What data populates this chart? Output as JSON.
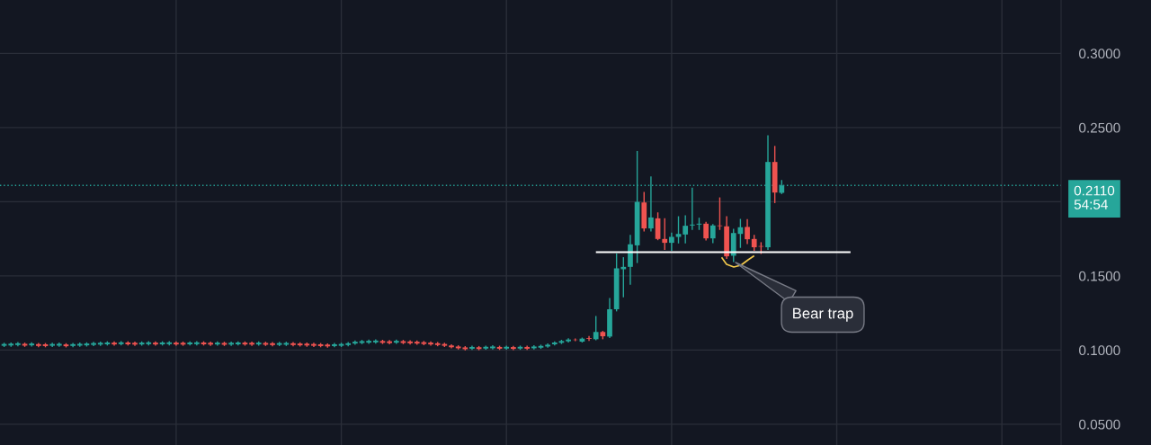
{
  "chart_data": {
    "type": "candlestick",
    "categories": [
      null,
      null,
      null,
      null,
      null,
      null,
      null,
      null,
      null,
      null,
      null,
      null,
      null,
      null,
      null,
      null,
      null,
      null,
      null,
      null,
      null,
      null,
      null,
      null,
      null,
      null,
      null,
      null,
      null,
      null,
      null,
      null,
      null,
      null,
      null,
      null,
      null,
      null,
      null,
      null,
      null,
      null,
      null,
      null,
      null,
      null,
      null,
      null,
      null,
      null,
      null,
      null,
      null,
      null,
      null,
      null,
      null,
      null,
      null,
      null,
      null,
      null,
      null,
      null,
      null,
      null,
      null,
      null,
      null,
      null,
      null,
      null,
      null,
      null,
      null,
      null,
      null,
      null,
      null,
      null,
      null,
      null,
      null,
      null,
      null,
      null,
      null,
      null,
      null,
      null,
      null,
      null,
      null,
      null,
      null,
      null,
      null,
      null,
      null,
      null,
      null,
      null,
      null,
      null,
      null,
      null,
      null,
      null,
      null,
      null,
      null,
      null,
      null,
      null,
      null,
      null,
      null,
      null,
      null,
      null,
      null,
      null,
      null,
      null,
      null,
      null,
      null,
      null,
      null,
      null,
      null,
      null,
      null,
      null,
      null,
      null,
      null,
      null,
      null,
      null,
      null,
      null,
      null,
      null,
      null,
      null,
      null,
      null,
      null,
      null,
      null,
      null,
      null,
      null
    ],
    "ohlc": [
      [
        0.1029,
        0.1045,
        0.1025,
        0.1041
      ],
      [
        0.1031,
        0.1047,
        0.1027,
        0.1043
      ],
      [
        0.1034,
        0.105,
        0.103,
        0.1046
      ],
      [
        0.1042,
        0.1046,
        0.1026,
        0.103
      ],
      [
        0.1032,
        0.1048,
        0.1028,
        0.1044
      ],
      [
        0.104,
        0.1044,
        0.1024,
        0.1028
      ],
      [
        0.1039,
        0.1043,
        0.1023,
        0.1027
      ],
      [
        0.1029,
        0.1045,
        0.1025,
        0.1041
      ],
      [
        0.103,
        0.1046,
        0.1026,
        0.1042
      ],
      [
        0.1038,
        0.1042,
        0.1022,
        0.1026
      ],
      [
        0.1028,
        0.1044,
        0.1024,
        0.104
      ],
      [
        0.103,
        0.1046,
        0.1026,
        0.1042
      ],
      [
        0.1032,
        0.1048,
        0.1028,
        0.1044
      ],
      [
        0.1035,
        0.1051,
        0.1031,
        0.1047
      ],
      [
        0.1037,
        0.1053,
        0.1033,
        0.1049
      ],
      [
        0.1039,
        0.1055,
        0.1035,
        0.1051
      ],
      [
        0.105,
        0.1054,
        0.1034,
        0.1038
      ],
      [
        0.104,
        0.1056,
        0.1036,
        0.1052
      ],
      [
        0.1051,
        0.1055,
        0.1035,
        0.1039
      ],
      [
        0.1049,
        0.1053,
        0.1033,
        0.1037
      ],
      [
        0.1038,
        0.1054,
        0.1034,
        0.105
      ],
      [
        0.104,
        0.1056,
        0.1036,
        0.1052
      ],
      [
        0.105,
        0.1054,
        0.1034,
        0.1038
      ],
      [
        0.1039,
        0.1055,
        0.1035,
        0.1051
      ],
      [
        0.104,
        0.1056,
        0.1036,
        0.1052
      ],
      [
        0.105,
        0.1054,
        0.1034,
        0.1038
      ],
      [
        0.1049,
        0.1053,
        0.1033,
        0.1037
      ],
      [
        0.1039,
        0.1055,
        0.1035,
        0.1051
      ],
      [
        0.104,
        0.1056,
        0.1036,
        0.1052
      ],
      [
        0.1051,
        0.1055,
        0.1035,
        0.1039
      ],
      [
        0.1049,
        0.1053,
        0.1033,
        0.1037
      ],
      [
        0.1038,
        0.1054,
        0.1034,
        0.105
      ],
      [
        0.1048,
        0.1052,
        0.1032,
        0.1036
      ],
      [
        0.1037,
        0.1053,
        0.1033,
        0.1049
      ],
      [
        0.1039,
        0.1055,
        0.1035,
        0.1051
      ],
      [
        0.105,
        0.1054,
        0.1034,
        0.1038
      ],
      [
        0.1049,
        0.1053,
        0.1033,
        0.1037
      ],
      [
        0.1038,
        0.1054,
        0.1034,
        0.105
      ],
      [
        0.1048,
        0.1052,
        0.1032,
        0.1036
      ],
      [
        0.1046,
        0.105,
        0.103,
        0.1034
      ],
      [
        0.1035,
        0.1051,
        0.1031,
        0.1047
      ],
      [
        0.1036,
        0.1052,
        0.1032,
        0.1048
      ],
      [
        0.1046,
        0.105,
        0.103,
        0.1034
      ],
      [
        0.1044,
        0.1048,
        0.1028,
        0.1032
      ],
      [
        0.1043,
        0.1047,
        0.1027,
        0.1031
      ],
      [
        0.1041,
        0.1045,
        0.1025,
        0.1029
      ],
      [
        0.1039,
        0.1043,
        0.1023,
        0.1027
      ],
      [
        0.1037,
        0.1041,
        0.1021,
        0.1025
      ],
      [
        0.1027,
        0.1043,
        0.1023,
        0.1039
      ],
      [
        0.1029,
        0.1045,
        0.1025,
        0.1041
      ],
      [
        0.1034,
        0.105,
        0.103,
        0.1046
      ],
      [
        0.1044,
        0.106,
        0.104,
        0.1056
      ],
      [
        0.1048,
        0.1064,
        0.1044,
        0.106
      ],
      [
        0.105,
        0.1066,
        0.1046,
        0.1062
      ],
      [
        0.1052,
        0.1068,
        0.1048,
        0.1064
      ],
      [
        0.1061,
        0.1065,
        0.1045,
        0.1049
      ],
      [
        0.1059,
        0.1063,
        0.1043,
        0.1047
      ],
      [
        0.105,
        0.1066,
        0.1046,
        0.1062
      ],
      [
        0.106,
        0.1064,
        0.1044,
        0.1048
      ],
      [
        0.1058,
        0.1062,
        0.1042,
        0.1046
      ],
      [
        0.1056,
        0.106,
        0.104,
        0.1044
      ],
      [
        0.1053,
        0.1057,
        0.1037,
        0.1041
      ],
      [
        0.105,
        0.1054,
        0.1034,
        0.1038
      ],
      [
        0.1046,
        0.105,
        0.103,
        0.1034
      ],
      [
        0.1041,
        0.1045,
        0.1025,
        0.1029
      ],
      [
        0.1031,
        0.1035,
        0.1015,
        0.1019
      ],
      [
        0.1024,
        0.1028,
        0.1008,
        0.1012
      ],
      [
        0.1018,
        0.1022,
        0.1002,
        0.1006
      ],
      [
        0.1009,
        0.1025,
        0.1005,
        0.1021
      ],
      [
        0.1019,
        0.1023,
        0.1003,
        0.1007
      ],
      [
        0.101,
        0.1026,
        0.1006,
        0.1022
      ],
      [
        0.1012,
        0.1028,
        0.1008,
        0.1024
      ],
      [
        0.1021,
        0.1025,
        0.1005,
        0.1009
      ],
      [
        0.101,
        0.1026,
        0.1006,
        0.1022
      ],
      [
        0.102,
        0.1024,
        0.1004,
        0.1008
      ],
      [
        0.101,
        0.1026,
        0.1006,
        0.1022
      ],
      [
        0.1021,
        0.1025,
        0.1005,
        0.1009
      ],
      [
        0.1012,
        0.1028,
        0.1008,
        0.1024
      ],
      [
        0.1016,
        0.1032,
        0.1012,
        0.1028
      ],
      [
        0.1024,
        0.104,
        0.102,
        0.1036
      ],
      [
        0.1039,
        0.1055,
        0.1035,
        0.1051
      ],
      [
        0.1049,
        0.1065,
        0.1045,
        0.1061
      ],
      [
        0.1059,
        0.1075,
        0.1055,
        0.1071
      ],
      [
        0.107,
        0.1074,
        0.1064,
        0.1068
      ],
      [
        0.1057,
        0.108,
        0.1055,
        0.1077
      ],
      [
        0.108,
        0.109,
        0.1065,
        0.1075
      ],
      [
        0.1073,
        0.1226,
        0.107,
        0.1122
      ],
      [
        0.1122,
        0.1125,
        0.1077,
        0.1093
      ],
      [
        0.1091,
        0.1346,
        0.1085,
        0.1275
      ],
      [
        0.1275,
        0.1647,
        0.1265,
        0.1551
      ],
      [
        0.1545,
        0.1622,
        0.136,
        0.1561
      ],
      [
        0.1561,
        0.1773,
        0.1444,
        0.1713
      ],
      [
        0.1706,
        0.2338,
        0.1591,
        0.1999
      ],
      [
        0.1995,
        0.2062,
        0.1803,
        0.182
      ],
      [
        0.182,
        0.2166,
        0.1803,
        0.1894
      ],
      [
        0.1888,
        0.1924,
        0.1745,
        0.1749
      ],
      [
        0.1749,
        0.1884,
        0.1679,
        0.1723
      ],
      [
        0.1723,
        0.1788,
        0.1673,
        0.1763
      ],
      [
        0.1763,
        0.1898,
        0.1723,
        0.1783
      ],
      [
        0.1779,
        0.1904,
        0.1723,
        0.1838
      ],
      [
        0.184,
        0.209,
        0.1814,
        0.1846
      ],
      [
        0.1846,
        0.1888,
        0.1814,
        0.1852
      ],
      [
        0.1852,
        0.186,
        0.1743,
        0.1753
      ],
      [
        0.1753,
        0.1845,
        0.1725,
        0.184
      ],
      [
        0.184,
        0.2025,
        0.1814,
        0.1836
      ],
      [
        0.1834,
        0.1898,
        0.1618,
        0.1632
      ],
      [
        0.1636,
        0.1814,
        0.1597,
        0.1789
      ],
      [
        0.1783,
        0.188,
        0.1693,
        0.1828
      ],
      [
        0.183,
        0.1878,
        0.1719,
        0.1747
      ],
      [
        0.1749,
        0.1773,
        0.1673,
        0.1693
      ],
      [
        0.1701,
        0.1723,
        0.1652,
        0.1697
      ],
      [
        0.1693,
        0.2443,
        0.168,
        0.2268
      ],
      [
        0.2268,
        0.2372,
        0.1995,
        0.2062
      ],
      [
        0.206,
        0.2142,
        0.2056,
        0.211
      ],
      null,
      null,
      null,
      null,
      null,
      null,
      null,
      null,
      null,
      null,
      null,
      null,
      null,
      null,
      null,
      null,
      null,
      null,
      null,
      null,
      null,
      null,
      null,
      null,
      null,
      null,
      null,
      null,
      null,
      null,
      null,
      null,
      null,
      null,
      null,
      null,
      null,
      null,
      null,
      null
    ],
    "series": [
      {
        "type": "line",
        "color": "#ffffff",
        "values": [
          null,
          null,
          null,
          null,
          null,
          null,
          null,
          null,
          null,
          null,
          null,
          null,
          null,
          null,
          null,
          null,
          null,
          null,
          null,
          null,
          null,
          null,
          null,
          null,
          null,
          null,
          null,
          null,
          null,
          null,
          null,
          null,
          null,
          null,
          null,
          null,
          null,
          null,
          null,
          null,
          null,
          null,
          null,
          null,
          null,
          null,
          null,
          null,
          null,
          null,
          null,
          null,
          null,
          null,
          null,
          null,
          null,
          null,
          null,
          null,
          null,
          null,
          null,
          null,
          null,
          null,
          null,
          null,
          null,
          null,
          null,
          null,
          null,
          null,
          null,
          null,
          null,
          null,
          null,
          null,
          null,
          null,
          null,
          null,
          null,
          null,
          0.166,
          0.166,
          0.166,
          0.166,
          0.166,
          0.166,
          0.166,
          0.166,
          0.166,
          0.166,
          0.166,
          0.166,
          0.166,
          0.166,
          0.166,
          0.166,
          0.166,
          0.166,
          0.166,
          0.166,
          0.166,
          0.166,
          0.166,
          0.166,
          0.166,
          0.166,
          0.166,
          0.166,
          0.166,
          0.166,
          0.166,
          0.166,
          0.166,
          0.166,
          0.166,
          0.166,
          0.166,
          0.166,
          null,
          null,
          null,
          null,
          null,
          null,
          null,
          null,
          null,
          null,
          null,
          null,
          null,
          null,
          null,
          null,
          null,
          null,
          null,
          null,
          null,
          null,
          null,
          null,
          null,
          null,
          null,
          null,
          null,
          null
        ]
      }
    ],
    "ylim": [
      0.036,
      0.336
    ],
    "yticks": [
      {
        "value": 0.05,
        "label": "0.0500"
      },
      {
        "value": 0.1,
        "label": "0.1000"
      },
      {
        "value": 0.15,
        "label": "0.1500"
      },
      {
        "value": 0.2,
        "label": null
      },
      {
        "value": 0.25,
        "label": "0.2500"
      },
      {
        "value": 0.3,
        "label": "0.3000"
      }
    ],
    "tick_labels": "y",
    "grid": true,
    "ref_lines": [
      {
        "axis": "y",
        "value": 0.211,
        "label": "0.2110\n54:54",
        "color": "#26a69a",
        "line_style": "dotted"
      }
    ],
    "annotations": [
      "Bear trap"
    ]
  }
}
